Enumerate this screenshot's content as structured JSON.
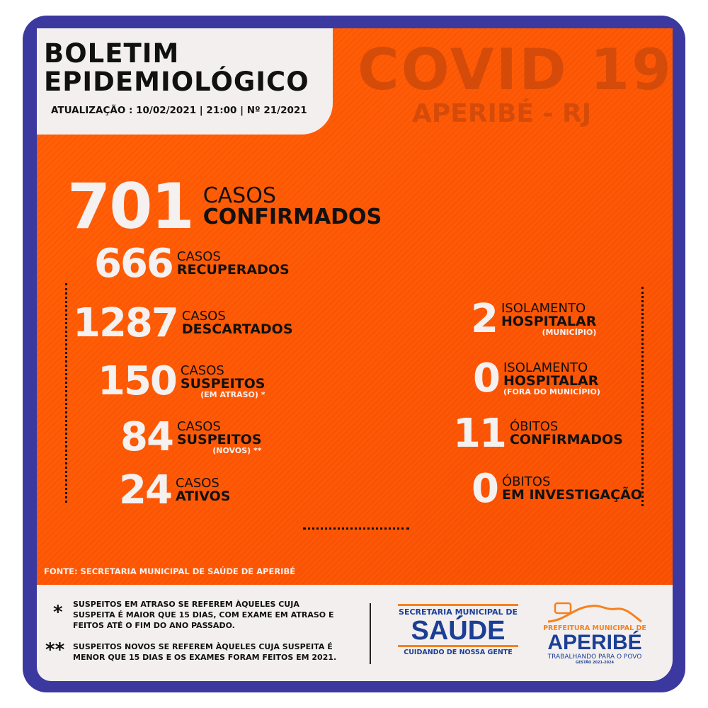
{
  "header": {
    "title_line1": "BOLETIM",
    "title_line2": "EPIDEMIOLÓGICO",
    "update": "ATUALIZAÇÃO : 10/02/2021  |  21:00  |  Nº 21/2021"
  },
  "watermark": {
    "title": "COVID 19",
    "location": "APERIBÉ - RJ"
  },
  "left_stats": [
    {
      "value": "701",
      "line1": "CASOS",
      "line2": "CONFIRMADOS",
      "note": ""
    },
    {
      "value": "666",
      "line1": "CASOS",
      "line2": "RECUPERADOS",
      "note": ""
    },
    {
      "value": "1287",
      "line1": "CASOS",
      "line2": "DESCARTADOS",
      "note": ""
    },
    {
      "value": "150",
      "line1": "CASOS",
      "line2": "SUSPEITOS",
      "note": "(EM ATRASO) *"
    },
    {
      "value": "84",
      "line1": "CASOS",
      "line2": "SUSPEITOS",
      "note": "(NOVOS) **"
    },
    {
      "value": "24",
      "line1": "CASOS",
      "line2": "ATIVOS",
      "note": ""
    }
  ],
  "right_stats": [
    {
      "value": "2",
      "line1": "ISOLAMENTO",
      "line2": "HOSPITALAR",
      "note": "(MUNICÍPIO)"
    },
    {
      "value": "0",
      "line1": "ISOLAMENTO",
      "line2": "HOSPITALAR",
      "note": "(FORA DO MUNICÍPIO)"
    },
    {
      "value": "11",
      "line1": "ÓBITOS",
      "line2": "CONFIRMADOS",
      "note": ""
    },
    {
      "value": "0",
      "line1": "ÓBITOS",
      "line2": "EM INVESTIGAÇÃO",
      "note": ""
    }
  ],
  "source": "FONTE: SECRETARIA MUNICIPAL DE SAÚDE DE APERIBÉ",
  "footnotes": [
    {
      "mark": "*",
      "text": "SUSPEITOS EM ATRASO SE REFEREM ÀQUELES CUJA SUSPEITA É MAIOR QUE 15 DIAS, COM EXAME EM ATRASO E FEITOS ATÉ O FIM DO ANO PASSADO."
    },
    {
      "mark": "**",
      "text": "SUSPEITOS NOVOS SE REFEREM ÀQUELES CUJA SUSPEITA É MENOR QUE 15 DIAS E OS EXAMES FORAM FEITOS EM 2021."
    }
  ],
  "logos": {
    "saude": {
      "top": "SECRETARIA MUNICIPAL DE",
      "main": "SAÚDE",
      "bottom": "CUIDANDO DE NOSSA GENTE"
    },
    "prefeitura": {
      "top": "PREFEITURA MUNICIPAL DE",
      "main": "APERIBÉ",
      "tagline": "TRABALHANDO PARA O POVO",
      "term": "GESTÃO 2021-2024"
    }
  },
  "colors": {
    "frame": "#3b399f",
    "orange": "#ff5a00",
    "logo_blue": "#1b3f95",
    "logo_orange": "#f7801e"
  }
}
